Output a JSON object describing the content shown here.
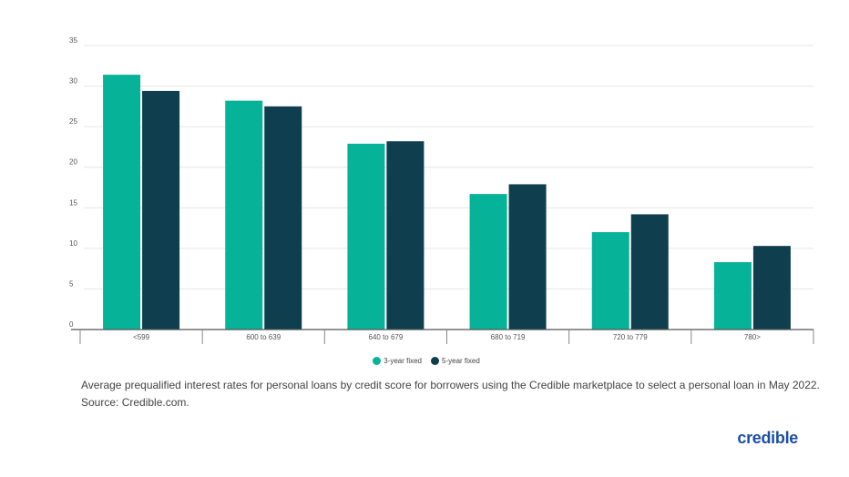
{
  "chart_data": {
    "type": "bar",
    "categories": [
      "<599",
      "600 to 639",
      "640 to 679",
      "680 to 719",
      "720 to 779",
      "780>"
    ],
    "series": [
      {
        "name": "3-year fixed",
        "color": "#06b298",
        "values": [
          31.4,
          28.2,
          22.9,
          16.7,
          12.0,
          8.3
        ]
      },
      {
        "name": "5-year fixed",
        "color": "#0f3f4f",
        "values": [
          29.4,
          27.5,
          23.2,
          17.9,
          14.2,
          10.3
        ]
      }
    ],
    "title": "",
    "xlabel": "",
    "ylabel": "",
    "ylim": [
      0,
      35
    ],
    "yticks": [
      0,
      5,
      10,
      15,
      20,
      25,
      30,
      35
    ],
    "grid": true,
    "legend_position": "bottom"
  },
  "caption": {
    "line1": "Average prequalified interest rates for personal loans by credit score for borrowers using the Credible marketplace to select a personal loan in May 2022.",
    "line2": "Source: Credible.com."
  },
  "logo": "credible"
}
